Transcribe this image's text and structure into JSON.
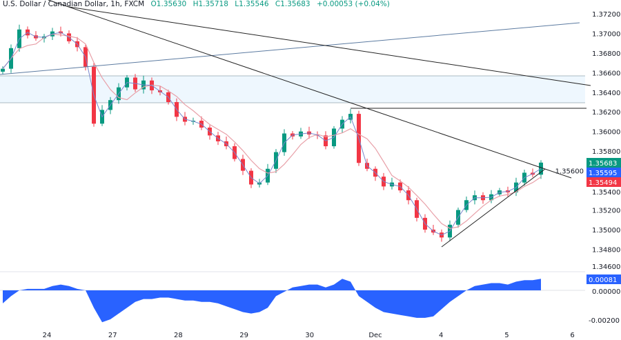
{
  "header": {
    "symbol": "U.S. Dollar / Canadian Dollar, 1h, FXCM",
    "open": "O1.35630",
    "high": "H1.35718",
    "low": "L1.35546",
    "close": "C1.35683",
    "change": "+0.00053 (+0.04%)"
  },
  "colors": {
    "up": "#089981",
    "down": "#f23645",
    "fast_ma": "#2962ff",
    "slow_ma": "#e8a0a8",
    "oscillator": "#2962ff",
    "zone": "#e3f2fd"
  },
  "chart_data": [
    {
      "type": "candlestick",
      "title": "U.S. Dollar / Canadian Dollar, 1h, FXCM",
      "closes": [
        1.3664,
        1.3685,
        1.3704,
        1.3698,
        1.3695,
        1.3697,
        1.3702,
        1.37,
        1.3692,
        1.3686,
        1.3666,
        1.3608,
        1.3622,
        1.3632,
        1.3645,
        1.3655,
        1.3643,
        1.3652,
        1.3642,
        1.364,
        1.363,
        1.3615,
        1.361,
        1.3611,
        1.3604,
        1.3596,
        1.359,
        1.3585,
        1.3572,
        1.356,
        1.3546,
        1.3548,
        1.3562,
        1.3579,
        1.3598,
        1.3595,
        1.36,
        1.3597,
        1.3596,
        1.3585,
        1.3603,
        1.3612,
        1.3618,
        1.3568,
        1.3562,
        1.3554,
        1.3544,
        1.3548,
        1.354,
        1.353,
        1.3512,
        1.35,
        1.3497,
        1.3492,
        1.3505,
        1.352,
        1.353,
        1.3535,
        1.353,
        1.3536,
        1.354,
        1.3538,
        1.3548,
        1.3558,
        1.3556,
        1.35683
      ],
      "ylim": [
        1.3452,
        1.3727
      ],
      "y_ticks": [
        "1.37200",
        "1.37000",
        "1.36800",
        "1.36600",
        "1.36400",
        "1.36200",
        "1.36000",
        "1.35800",
        "1.35600",
        "1.35400",
        "1.35200",
        "1.35000",
        "1.34800",
        "1.34600"
      ],
      "x_ticks": [
        "24",
        "27",
        "28",
        "29",
        "30",
        "Dec",
        "4",
        "5",
        "6"
      ],
      "price_tags": {
        "last": "1.35683",
        "fast_ma": "1.35595",
        "slow_ma": "1.35494"
      }
    },
    {
      "type": "area",
      "values": [
        -0.0009,
        -0.0004,
        0,
        0.0001,
        0.0001,
        0.0001,
        0.0003,
        0.0004,
        0.0003,
        0.0001,
        0,
        -0.0012,
        -0.0022,
        -0.002,
        -0.0016,
        -0.0012,
        -0.0008,
        -0.0006,
        -0.0006,
        -0.0005,
        -0.0005,
        -0.0006,
        -0.0007,
        -0.0007,
        -0.0008,
        -0.0008,
        -0.0009,
        -0.0011,
        -0.0013,
        -0.0015,
        -0.0016,
        -0.0015,
        -0.0012,
        -0.0004,
        -0.0001,
        0.0002,
        0.0003,
        0.0004,
        0.0004,
        0.0002,
        0.0004,
        0.0008,
        0.0006,
        -0.0004,
        -0.0008,
        -0.0012,
        -0.0015,
        -0.0016,
        -0.0017,
        -0.0018,
        -0.0019,
        -0.0019,
        -0.0018,
        -0.0013,
        -0.0008,
        -0.0004,
        0,
        0.0003,
        0.0004,
        0.0005,
        0.0005,
        0.0004,
        0.0006,
        0.0007,
        0.0007,
        0.0008
      ],
      "ylim": [
        -0.0024,
        0.0012
      ],
      "y_ticks": [
        "0.00000",
        "-0.00200"
      ],
      "last_tag": "0.00081"
    }
  ]
}
